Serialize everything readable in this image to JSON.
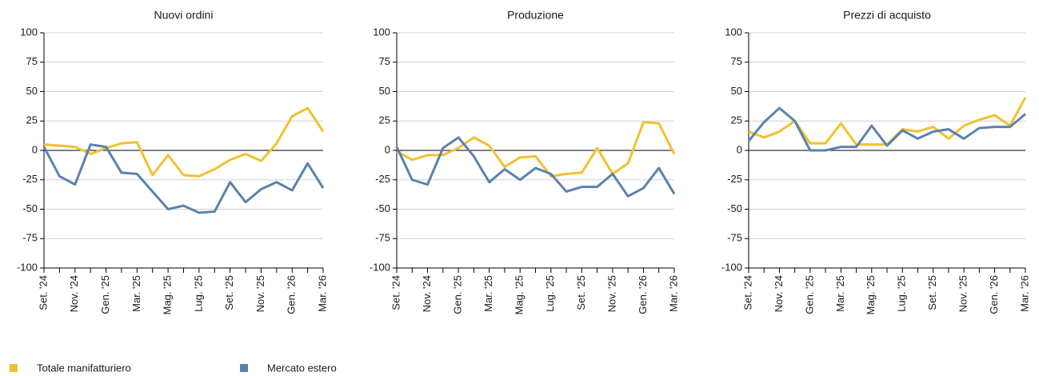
{
  "chart_data": [
    {
      "type": "line",
      "title": "Nuovi ordini",
      "categories": [
        "Set. '24",
        null,
        "Nov. '24",
        null,
        "Gen. '25",
        null,
        "Mar. '25",
        null,
        "Mag. '25",
        null,
        "Lug. '25",
        null,
        "Set. '25",
        null,
        "Nov. '25",
        null,
        "Gen. '26",
        null,
        "Mar. '26"
      ],
      "series": [
        {
          "name": "Totale manifatturiero",
          "color": "#f2c12e",
          "values": [
            5,
            4,
            3,
            -3,
            2,
            6,
            7,
            -21,
            -4,
            -21,
            -22,
            -16,
            -8,
            -3,
            -9,
            6,
            29,
            36,
            16
          ]
        },
        {
          "name": "Mercato estero",
          "color": "#5b82ad",
          "values": [
            3,
            -22,
            -29,
            5,
            3,
            -19,
            -20,
            -35,
            -50,
            -47,
            -53,
            -52,
            -27,
            -44,
            -33,
            -27,
            -34,
            -11,
            -32
          ]
        }
      ],
      "ylim": [
        -100,
        100
      ],
      "yticks": [
        -100,
        -75,
        -50,
        -25,
        0,
        25,
        50,
        75,
        100
      ],
      "grid": true
    },
    {
      "type": "line",
      "title": "Produzione",
      "categories": [
        "Set. '24",
        null,
        "Nov. '24",
        null,
        "Gen. '25",
        null,
        "Mar. '25",
        null,
        "Mag. '25",
        null,
        "Lug. '25",
        null,
        "Set. '25",
        null,
        "Nov. '25",
        null,
        "Gen. '26",
        null,
        "Mar. '26"
      ],
      "series": [
        {
          "color": "#f2c12e",
          "values": [
            -1,
            -8,
            -4,
            -4,
            2,
            11,
            4,
            -14,
            -6,
            -5,
            -22,
            -20,
            -19,
            2,
            -20,
            -11,
            24,
            23,
            -3
          ]
        },
        {
          "color": "#5b82ad",
          "values": [
            3,
            -25,
            -29,
            2,
            11,
            -5,
            -27,
            -16,
            -25,
            -15,
            -20,
            -35,
            -31,
            -31,
            -20,
            -39,
            -32,
            -15,
            -37
          ]
        }
      ],
      "ylim": [
        -100,
        100
      ],
      "yticks": [
        -100,
        -75,
        -50,
        -25,
        0,
        25,
        50,
        75,
        100
      ],
      "grid": true
    },
    {
      "type": "line",
      "title": "Prezzi di acquisto",
      "categories": [
        "Set. '24",
        null,
        "Nov. '24",
        null,
        "Gen. '25",
        null,
        "Mar. '25",
        null,
        "Mag. '25",
        null,
        "Lug. '25",
        null,
        "Set. '25",
        null,
        "Nov. '25",
        null,
        "Gen. '26",
        null,
        "Mar. '26"
      ],
      "series": [
        {
          "color": "#f2c12e",
          "values": [
            16,
            11,
            16,
            25,
            6,
            6,
            23,
            5,
            5,
            5,
            18,
            16,
            20,
            10,
            21,
            26,
            30,
            21,
            45
          ]
        },
        {
          "color": "#5b82ad",
          "values": [
            8,
            24,
            36,
            25,
            0,
            0,
            3,
            3,
            21,
            4,
            17,
            10,
            16,
            18,
            10,
            19,
            20,
            20,
            31
          ]
        }
      ],
      "ylim": [
        -100,
        100
      ],
      "yticks": [
        -100,
        -75,
        -50,
        -25,
        0,
        25,
        50,
        75,
        100
      ],
      "grid": true
    }
  ]
}
